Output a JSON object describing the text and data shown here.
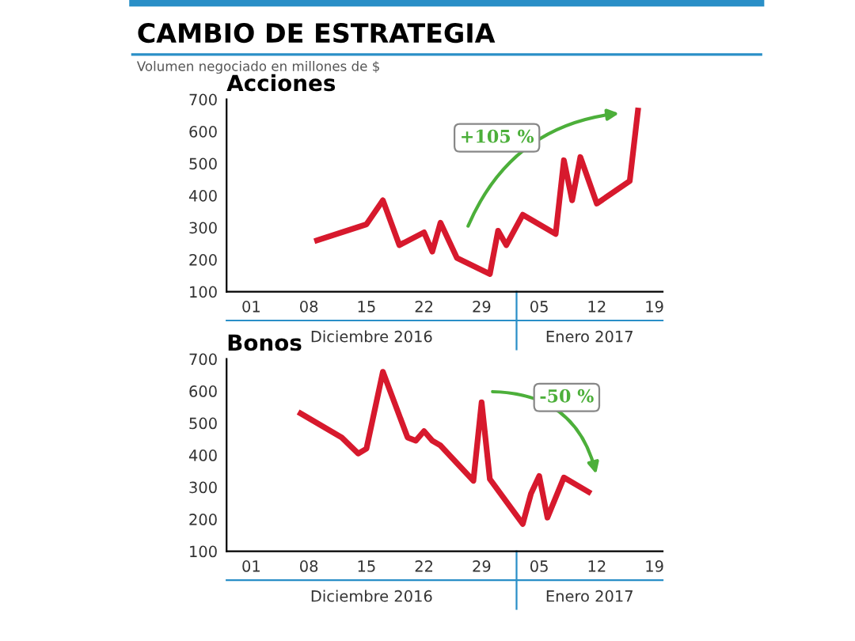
{
  "chart_data": [
    {
      "type": "line",
      "title": "CAMBIO DE ESTRATEGIA",
      "subtitle": "Volumen negociado en millones de $",
      "ylabel": "Acciones",
      "x": [
        "2016-12-09",
        "2016-12-15",
        "2016-12-17",
        "2016-12-19",
        "2016-12-22",
        "2016-12-23",
        "2016-12-24",
        "2016-12-26",
        "2016-12-30",
        "2016-12-31",
        "2017-01-01",
        "2017-01-03",
        "2017-01-07",
        "2017-01-08",
        "2017-01-09",
        "2017-01-10",
        "2017-01-12",
        "2017-01-16",
        "2017-01-17"
      ],
      "series": [
        {
          "color": "#d7192d",
          "values": [
            260,
            310,
            385,
            245,
            285,
            225,
            315,
            205,
            155,
            290,
            245,
            340,
            280,
            510,
            385,
            520,
            375,
            445,
            665
          ]
        }
      ],
      "xlim": [
        "2016-11-28",
        "2017-01-20"
      ],
      "ylim": [
        100,
        700
      ],
      "xticks": [
        {
          "value": "2016-12-01",
          "label": "01"
        },
        {
          "value": "2016-12-08",
          "label": "08"
        },
        {
          "value": "2016-12-15",
          "label": "15"
        },
        {
          "value": "2016-12-22",
          "label": "22"
        },
        {
          "value": "2016-12-29",
          "label": "29"
        },
        {
          "value": "2017-01-05",
          "label": "05"
        },
        {
          "value": "2017-01-12",
          "label": "12"
        },
        {
          "value": "2017-01-19",
          "label": "19"
        }
      ],
      "yticks": [
        100,
        200,
        300,
        400,
        500,
        600,
        700
      ],
      "grid": false,
      "legend": false,
      "marker": "none",
      "line_style": "solid",
      "annotations": [
        "+105 %",
        "Diciembre 2016",
        "Enero 2017"
      ]
    },
    {
      "type": "line",
      "ylabel": "Bonos",
      "x": [
        "2016-12-07",
        "2016-12-12",
        "2016-12-14",
        "2016-12-15",
        "2016-12-17",
        "2016-12-20",
        "2016-12-21",
        "2016-12-22",
        "2016-12-23",
        "2016-12-24",
        "2016-12-28",
        "2016-12-29",
        "2016-12-30",
        "2017-01-03",
        "2017-01-04",
        "2017-01-05",
        "2017-01-06",
        "2017-01-08",
        "2017-01-11"
      ],
      "series": [
        {
          "color": "#d7192d",
          "values": [
            530,
            455,
            405,
            420,
            660,
            455,
            445,
            475,
            445,
            430,
            320,
            565,
            325,
            185,
            280,
            335,
            205,
            330,
            285
          ]
        }
      ],
      "xlim": [
        "2016-11-28",
        "2017-01-20"
      ],
      "ylim": [
        100,
        700
      ],
      "xticks": [
        {
          "value": "2016-12-01",
          "label": "01"
        },
        {
          "value": "2016-12-08",
          "label": "08"
        },
        {
          "value": "2016-12-15",
          "label": "15"
        },
        {
          "value": "2016-12-22",
          "label": "22"
        },
        {
          "value": "2016-12-29",
          "label": "29"
        },
        {
          "value": "2017-01-05",
          "label": "05"
        },
        {
          "value": "2017-01-12",
          "label": "12"
        },
        {
          "value": "2017-01-19",
          "label": "19"
        }
      ],
      "yticks": [
        100,
        200,
        300,
        400,
        500,
        600,
        700
      ],
      "grid": false,
      "legend": false,
      "marker": "none",
      "line_style": "solid",
      "annotations": [
        "-50 %",
        "Diciembre 2016",
        "Enero 2017"
      ]
    }
  ]
}
